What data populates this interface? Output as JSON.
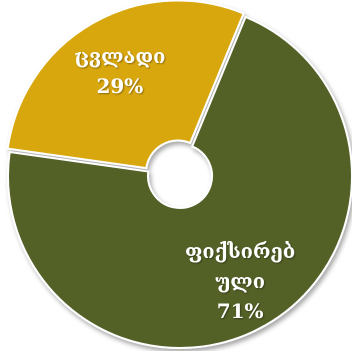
{
  "chart_data": {
    "type": "pie",
    "variant": "doughnut",
    "title": "",
    "series": [
      {
        "categories": [
          "ცვლადი",
          "ფიქსირებული"
        ],
        "values": [
          29,
          71
        ],
        "value_labels": [
          "29%",
          "71%"
        ],
        "label_lines": [
          [
            "ცვლადი"
          ],
          [
            "ფიქსირებ",
            "ული"
          ]
        ],
        "colors": [
          "#d8a60a",
          "#526127"
        ]
      }
    ],
    "background_color": "#ffffff",
    "separator_color": "#ffffff",
    "legend": "none"
  }
}
